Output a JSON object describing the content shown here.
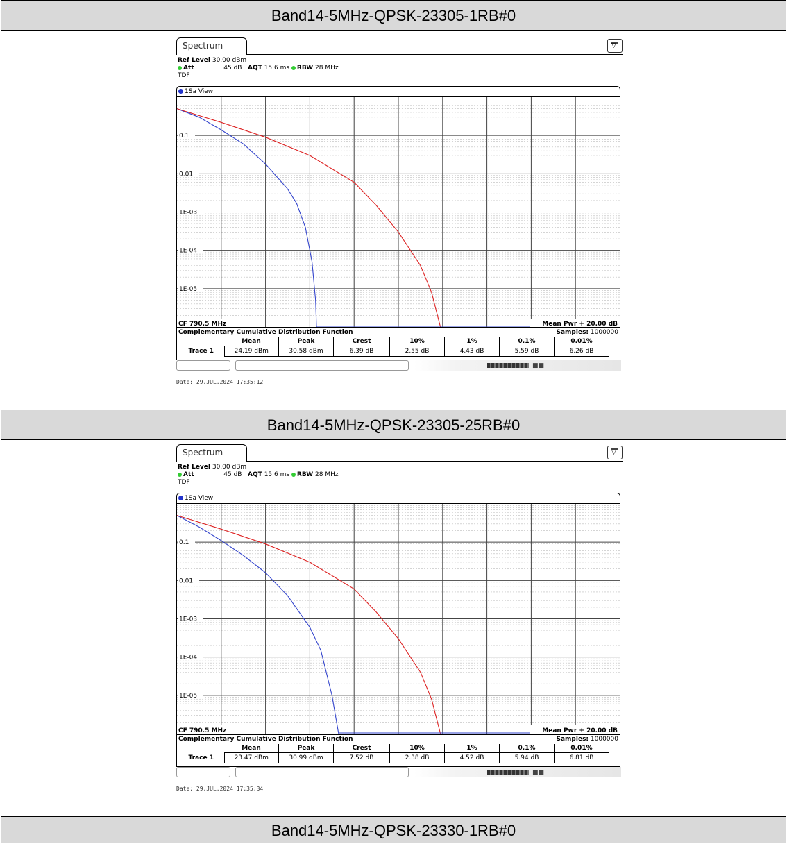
{
  "sections": [
    {
      "header": "Band14-5MHz-QPSK-23305-1RB#0",
      "screen": {
        "tab": "Spectrum",
        "ref_level_label": "Ref Level",
        "ref_level_value": "30.00 dBm",
        "att_label": "Att",
        "att_value": "45 dB",
        "aqt_label": "AQT",
        "aqt_value": "15.6 ms",
        "rbw_label": "RBW",
        "rbw_value": "28 MHz",
        "mode": "TDF",
        "view": "1Sa View",
        "y_ticks": [
          "0.1",
          "0.01",
          "1E-03",
          "1E-04",
          "1E-05"
        ],
        "cf": "CF 790.5 MHz",
        "mean_pwr": "Mean Pwr + 20.00 dB",
        "func_title": "Complementary Cumulative Distribution Function",
        "samples_label": "Samples:",
        "samples_value": "1000000",
        "columns": [
          "Mean",
          "Peak",
          "Crest",
          "10%",
          "1%",
          "0.1%",
          "0.01%"
        ],
        "row_label": "Trace 1",
        "values": [
          "24.19 dBm",
          "30.58 dBm",
          "6.39 dB",
          "2.55 dB",
          "4.43 dB",
          "5.59 dB",
          "6.26 dB"
        ],
        "date": "Date: 29.JUL.2024  17:35:12"
      }
    },
    {
      "header": "Band14-5MHz-QPSK-23305-25RB#0",
      "screen": {
        "tab": "Spectrum",
        "ref_level_label": "Ref Level",
        "ref_level_value": "30.00 dBm",
        "att_label": "Att",
        "att_value": "45 dB",
        "aqt_label": "AQT",
        "aqt_value": "15.6 ms",
        "rbw_label": "RBW",
        "rbw_value": "28 MHz",
        "mode": "TDF",
        "view": "1Sa View",
        "y_ticks": [
          "0.1",
          "0.01",
          "1E-03",
          "1E-04",
          "1E-05"
        ],
        "cf": "CF 790.5 MHz",
        "mean_pwr": "Mean Pwr + 20.00 dB",
        "func_title": "Complementary Cumulative Distribution Function",
        "samples_label": "Samples:",
        "samples_value": "1000000",
        "columns": [
          "Mean",
          "Peak",
          "Crest",
          "10%",
          "1%",
          "0.1%",
          "0.01%"
        ],
        "row_label": "Trace 1",
        "values": [
          "23.47 dBm",
          "30.99 dBm",
          "7.52 dB",
          "2.38 dB",
          "4.52 dB",
          "5.94 dB",
          "6.81 dB"
        ],
        "date": "Date: 29.JUL.2024  17:35:34"
      }
    },
    {
      "header": "Band14-5MHz-QPSK-23330-1RB#0"
    }
  ],
  "chart_data": [
    {
      "type": "line",
      "x_unit": "dB",
      "xlim": [
        0,
        20
      ],
      "ylim": [
        1e-06,
        1
      ],
      "yscale": "log",
      "grid": true,
      "series": [
        {
          "color": "#3344cc",
          "x": [
            0,
            1,
            2,
            3,
            4,
            5,
            5.4,
            5.8,
            6.1,
            6.26,
            6.3
          ],
          "y": [
            0.5,
            0.3,
            0.14,
            0.06,
            0.018,
            0.004,
            0.0017,
            0.0004,
            5e-05,
            5e-06,
            1e-06
          ]
        },
        {
          "color": "#dd2222",
          "x": [
            0,
            2,
            4,
            6,
            8,
            9,
            10,
            11,
            11.5,
            11.9
          ],
          "y": [
            0.5,
            0.22,
            0.09,
            0.03,
            0.006,
            0.0015,
            0.0003,
            4e-05,
            8e-06,
            1e-06
          ]
        }
      ]
    },
    {
      "type": "line",
      "x_unit": "dB",
      "xlim": [
        0,
        20
      ],
      "ylim": [
        1e-06,
        1
      ],
      "yscale": "log",
      "grid": true,
      "series": [
        {
          "color": "#3344cc",
          "x": [
            0,
            1,
            2,
            3,
            4,
            5,
            6,
            6.5,
            7,
            7.3
          ],
          "y": [
            0.5,
            0.25,
            0.11,
            0.045,
            0.016,
            0.004,
            0.0006,
            0.00015,
            1e-05,
            1e-06
          ]
        },
        {
          "color": "#dd2222",
          "x": [
            0,
            2,
            4,
            6,
            8,
            9,
            10,
            11,
            11.5,
            11.9
          ],
          "y": [
            0.5,
            0.22,
            0.09,
            0.03,
            0.006,
            0.0015,
            0.0003,
            4e-05,
            8e-06,
            1e-06
          ]
        }
      ]
    }
  ]
}
